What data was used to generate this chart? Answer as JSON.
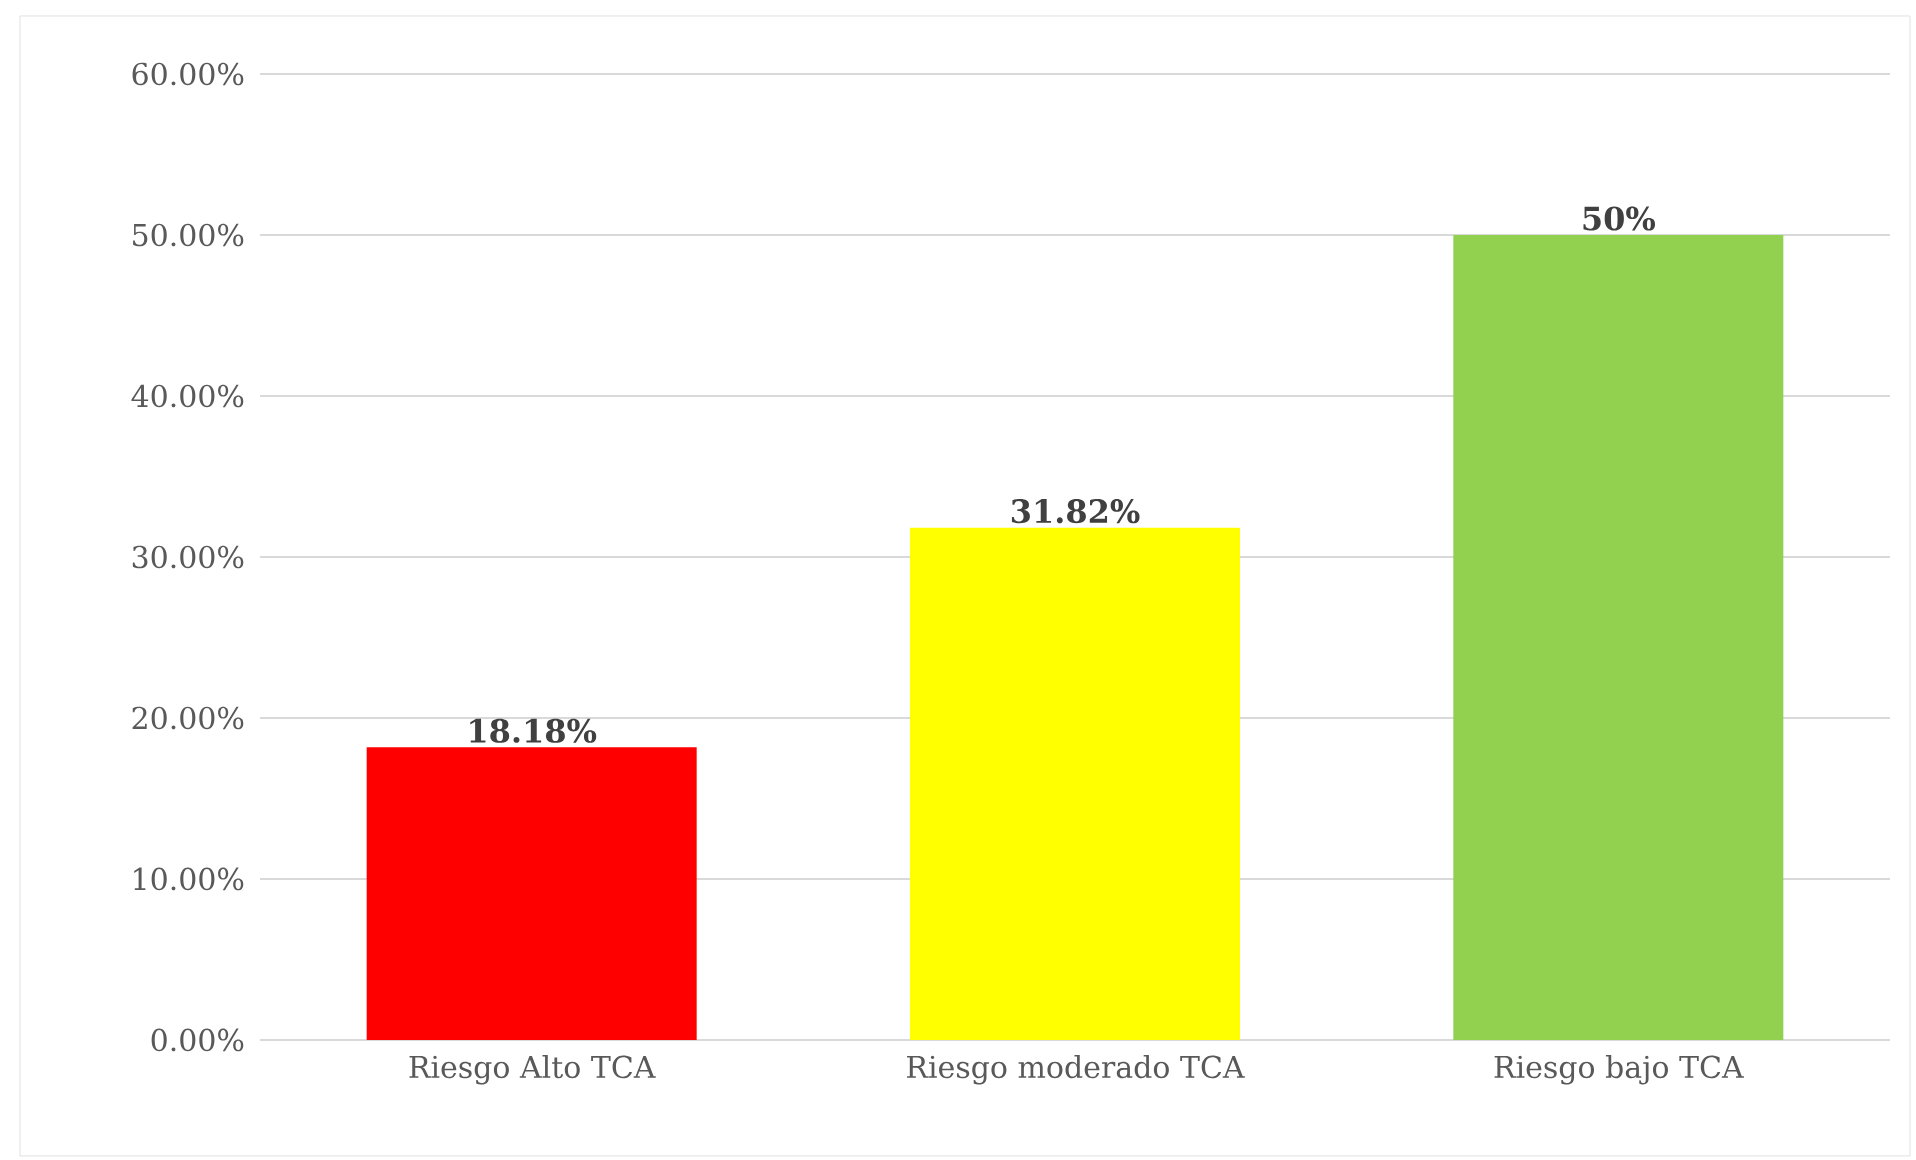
{
  "chart_data": {
    "type": "bar",
    "categories": [
      "Riesgo Alto TCA",
      "Riesgo moderado TCA",
      "Riesgo bajo TCA"
    ],
    "values": [
      18.18,
      31.82,
      50
    ],
    "value_labels": [
      "18.18%",
      "31.82%",
      "50%"
    ],
    "colors": [
      "#ff0000",
      "#ffff00",
      "#92d050"
    ],
    "ylim": [
      0,
      60
    ],
    "yticks": [
      {
        "value": 0,
        "label": "0.00%"
      },
      {
        "value": 10,
        "label": "10.00%"
      },
      {
        "value": 20,
        "label": "20.00%"
      },
      {
        "value": 30,
        "label": "30.00%"
      },
      {
        "value": 40,
        "label": "40.00%"
      },
      {
        "value": 50,
        "label": "50.00%"
      },
      {
        "value": 60,
        "label": "60.00%"
      }
    ],
    "grid": "y"
  }
}
